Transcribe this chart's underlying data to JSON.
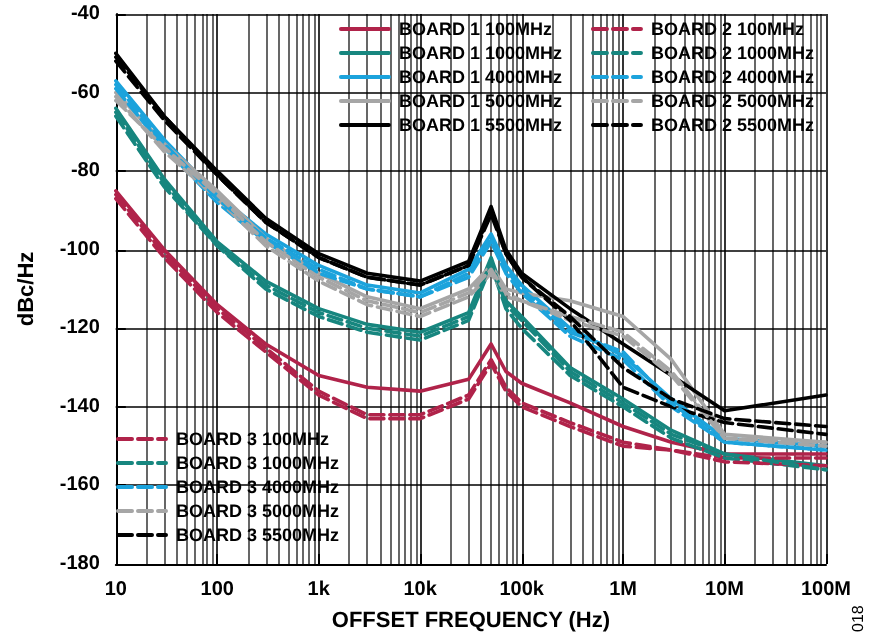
{
  "chart_data": {
    "type": "line",
    "xlabel": "OFFSET FREQUENCY (Hz)",
    "ylabel": "dBc/Hz",
    "log": "x",
    "grid": true,
    "legend": "top right",
    "marker": "none",
    "x": [
      10,
      30,
      100,
      300,
      1000,
      3000,
      10000,
      30000,
      50000,
      70000,
      100000,
      300000,
      1000000,
      3000000,
      10000000,
      100000000
    ],
    "xlim": [
      10,
      100000000
    ],
    "xticks": [
      10,
      100,
      {
        "value": 1000,
        "label": "1k"
      },
      {
        "value": 10000,
        "label": "10k"
      },
      {
        "value": 100000,
        "label": "100k"
      },
      {
        "value": 1000000,
        "label": "1M"
      },
      {
        "value": 10000000,
        "label": "10M"
      },
      {
        "value": 100000000,
        "label": "100M"
      }
    ],
    "ylim": [
      -180,
      -40
    ],
    "yticks": [
      -180,
      -160,
      -140,
      -120,
      -100,
      -80,
      -60,
      -40
    ],
    "annotations": [
      "018"
    ],
    "series": [
      {
        "name": "BOARD 1 100MHz",
        "color": "#b0234a",
        "line_style": "solid",
        "values": [
          -85,
          -100,
          -114,
          -124,
          -132,
          -135,
          -136,
          -133,
          -124,
          -131,
          -134,
          -139,
          -145,
          -149,
          -152,
          -152
        ]
      },
      {
        "name": "BOARD 1 1000MHz",
        "color": "#17867f",
        "line_style": "solid",
        "values": [
          -64,
          -82,
          -98,
          -108,
          -115,
          -119,
          -121,
          -116,
          -102,
          -113,
          -117,
          -130,
          -138,
          -146,
          -152,
          -155
        ]
      },
      {
        "name": "BOARD 1 4000MHz",
        "color": "#1ca3dc",
        "line_style": "solid",
        "values": [
          -57,
          -72,
          -86,
          -96,
          -104,
          -109,
          -111,
          -105,
          -96,
          -104,
          -109,
          -120,
          -127,
          -138,
          -148,
          -150
        ]
      },
      {
        "name": "BOARD 1 5000MHz",
        "color": "#a6a6a6",
        "line_style": "solid",
        "values": [
          -60,
          -73,
          -85,
          -97,
          -106,
          -112,
          -115,
          -110,
          -104,
          -110,
          -111,
          -113,
          -117,
          -128,
          -147,
          -149
        ]
      },
      {
        "name": "BOARD 1 5500MHz",
        "color": "#000000",
        "line_style": "solid",
        "values": [
          -50,
          -66,
          -80,
          -92,
          -101,
          -106,
          -108,
          -103,
          -89,
          -100,
          -106,
          -115,
          -124,
          -132,
          -141,
          -137
        ]
      },
      {
        "name": "BOARD 2 100MHz",
        "color": "#b0234a",
        "line_style": "dashed",
        "values": [
          -87,
          -102,
          -116,
          -126,
          -137,
          -143,
          -143,
          -138,
          -129,
          -136,
          -140,
          -145,
          -150,
          -151,
          -153,
          -153
        ]
      },
      {
        "name": "BOARD 2 1000MHz",
        "color": "#17867f",
        "line_style": "dashed",
        "values": [
          -66,
          -84,
          -99,
          -110,
          -117,
          -121,
          -123,
          -118,
          -104,
          -115,
          -120,
          -132,
          -140,
          -148,
          -153,
          -156
        ]
      },
      {
        "name": "BOARD 2 4000MHz",
        "color": "#1ca3dc",
        "line_style": "dashed",
        "values": [
          -59,
          -74,
          -88,
          -98,
          -106,
          -110,
          -112,
          -107,
          -98,
          -106,
          -111,
          -122,
          -128,
          -140,
          -149,
          -151
        ]
      },
      {
        "name": "BOARD 2 5000MHz",
        "color": "#a6a6a6",
        "line_style": "dashed",
        "values": [
          -61,
          -75,
          -87,
          -99,
          -108,
          -114,
          -117,
          -112,
          -106,
          -112,
          -113,
          -118,
          -122,
          -132,
          -148,
          -150
        ]
      },
      {
        "name": "BOARD 2 5500MHz",
        "color": "#000000",
        "line_style": "dashed",
        "values": [
          -52,
          -67,
          -81,
          -93,
          -102,
          -107,
          -109,
          -104,
          -91,
          -101,
          -107,
          -118,
          -135,
          -140,
          -144,
          -147
        ]
      },
      {
        "name": "BOARD 3 100MHz",
        "color": "#b0234a",
        "line_style": "dashed",
        "values": [
          -86,
          -101,
          -115,
          -125,
          -136,
          -142,
          -142,
          -137,
          -128,
          -135,
          -139,
          -144,
          -149,
          -151,
          -154,
          -155
        ]
      },
      {
        "name": "BOARD 3 1000MHz",
        "color": "#17867f",
        "line_style": "dashed",
        "values": [
          -65,
          -83,
          -99,
          -109,
          -116,
          -120,
          -122,
          -117,
          -103,
          -114,
          -118,
          -131,
          -139,
          -147,
          -152,
          -156
        ]
      },
      {
        "name": "BOARD 3 4000MHz",
        "color": "#1ca3dc",
        "line_style": "dashed",
        "values": [
          -58,
          -73,
          -87,
          -97,
          -105,
          -110,
          -112,
          -106,
          -97,
          -105,
          -110,
          -121,
          -126,
          -139,
          -149,
          -151
        ]
      },
      {
        "name": "BOARD 3 5000MHz",
        "color": "#a6a6a6",
        "line_style": "dashed",
        "values": [
          -62,
          -74,
          -86,
          -98,
          -107,
          -113,
          -116,
          -111,
          -105,
          -111,
          -113,
          -117,
          -121,
          -131,
          -148,
          -149
        ]
      },
      {
        "name": "BOARD 3 5500MHz",
        "color": "#000000",
        "line_style": "dashed",
        "values": [
          -51,
          -66,
          -81,
          -93,
          -102,
          -107,
          -109,
          -104,
          -90,
          -101,
          -107,
          -117,
          -130,
          -138,
          -143,
          -145
        ]
      }
    ]
  }
}
